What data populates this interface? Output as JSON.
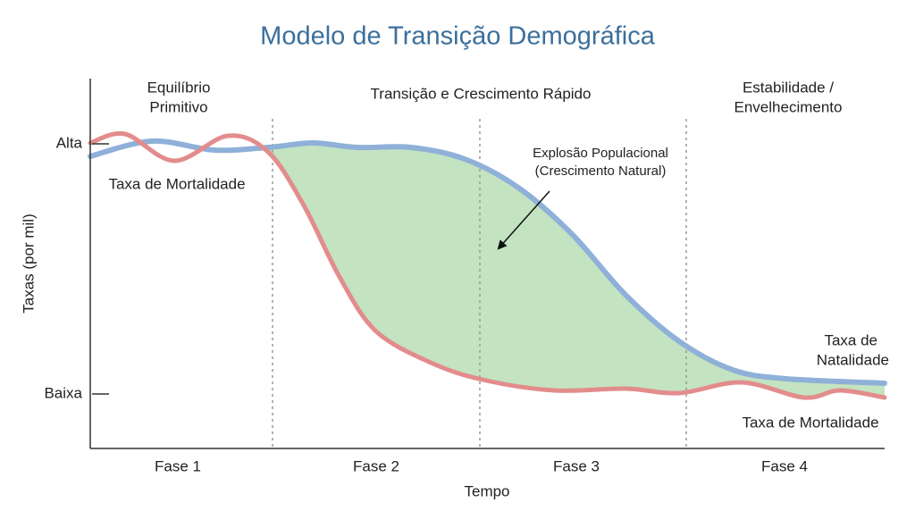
{
  "title": "Modelo de Transição Demográfica",
  "y_axis": {
    "label": "Taxas (por mil)",
    "ticks": [
      "Alta",
      "Baixa"
    ]
  },
  "x_axis": {
    "label": "Tempo",
    "phases": [
      "Fase 1",
      "Fase 2",
      "Fase 3",
      "Fase 4"
    ]
  },
  "phase_headers": [
    [
      "Equilíbrio",
      "Primitivo"
    ],
    [
      "Transição e Crescimento Rápido"
    ],
    [
      "Estabilidade /",
      "Envelhecimento"
    ]
  ],
  "annotation": [
    "Explosão Populacional",
    "(Crescimento Natural)"
  ],
  "curve_labels": {
    "mortality_left": "Taxa de Mortalidade",
    "natality": [
      "Taxa de",
      "Natalidade"
    ],
    "mortality_right": "Taxa de Mortalidade"
  }
}
